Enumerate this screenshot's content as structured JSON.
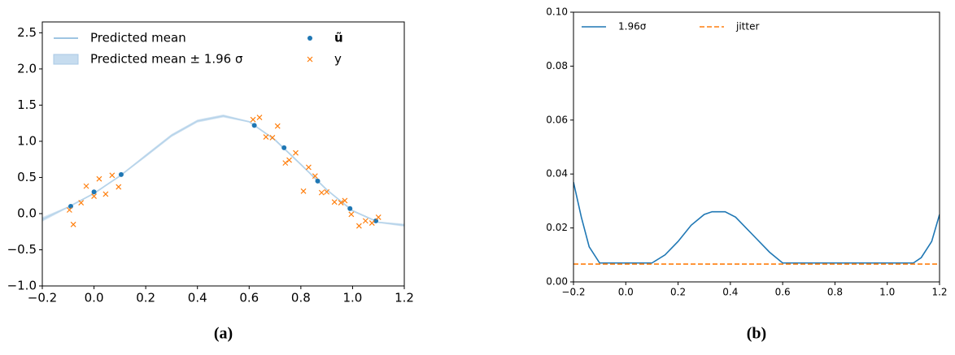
{
  "chart_data": [
    {
      "type": "line",
      "caption": "(a)",
      "xlim": [
        -0.2,
        1.2
      ],
      "ylim": [
        -1.0,
        2.65
      ],
      "xticks": [
        {
          "value": -0.2,
          "label": "−0.2"
        },
        {
          "value": 0,
          "label": "0.0"
        },
        {
          "value": 0.2,
          "label": "0.2"
        },
        {
          "value": 0.4,
          "label": "0.4"
        },
        {
          "value": 0.6,
          "label": "0.6"
        },
        {
          "value": 0.8,
          "label": "0.8"
        },
        {
          "value": 1.0,
          "label": "1.0"
        },
        {
          "value": 1.2,
          "label": "1.2"
        }
      ],
      "yticks": [
        {
          "value": -1.0,
          "label": "−1.0"
        },
        {
          "value": -0.5,
          "label": "−0.5"
        },
        {
          "value": 0,
          "label": "0.0"
        },
        {
          "value": 0.5,
          "label": "0.5"
        },
        {
          "value": 1.0,
          "label": "1.0"
        },
        {
          "value": 1.5,
          "label": "1.5"
        },
        {
          "value": 2.0,
          "label": "2.0"
        },
        {
          "value": 2.5,
          "label": "2.5"
        }
      ],
      "legend": "upper left",
      "series": [
        {
          "name": "Predicted mean",
          "kind": "line",
          "color": "#7fb2d8",
          "x": [
            -0.2,
            -0.1,
            0,
            0.1,
            0.2,
            0.3,
            0.4,
            0.5,
            0.6,
            0.7,
            0.8,
            0.9,
            1.0,
            1.1,
            1.2
          ],
          "values": [
            -0.08,
            0.09,
            0.28,
            0.52,
            0.8,
            1.08,
            1.28,
            1.35,
            1.27,
            1.02,
            0.68,
            0.33,
            0.04,
            -0.12,
            -0.16
          ]
        },
        {
          "name": "Predicted mean ± 1.96 σ",
          "kind": "band",
          "color": "#c6dcef",
          "x": [
            -0.2,
            -0.1,
            0,
            0.1,
            0.2,
            0.3,
            0.4,
            0.5,
            0.6,
            0.7,
            0.8,
            0.9,
            1.0,
            1.1,
            1.2
          ],
          "lower": [
            -0.11,
            0.08,
            0.27,
            0.51,
            0.78,
            1.06,
            1.26,
            1.33,
            1.26,
            1.01,
            0.67,
            0.32,
            0.03,
            -0.13,
            -0.18
          ],
          "upper": [
            -0.05,
            0.1,
            0.29,
            0.53,
            0.82,
            1.1,
            1.3,
            1.37,
            1.28,
            1.03,
            0.69,
            0.34,
            0.05,
            -0.11,
            -0.14
          ]
        },
        {
          "name": "ũ",
          "kind": "dot",
          "color": "#1f77b4",
          "x": [
            -0.09,
            0,
            0.105,
            0.62,
            0.735,
            0.865,
            0.99,
            1.09
          ],
          "values": [
            0.1,
            0.3,
            0.54,
            1.22,
            0.91,
            0.45,
            0.07,
            -0.1
          ]
        },
        {
          "name": "y",
          "kind": "cross",
          "color": "#ff7f0e",
          "x": [
            -0.095,
            -0.08,
            -0.05,
            -0.03,
            0,
            0.02,
            0.045,
            0.07,
            0.095,
            0.615,
            0.64,
            0.665,
            0.69,
            0.71,
            0.74,
            0.755,
            0.78,
            0.81,
            0.83,
            0.855,
            0.88,
            0.9,
            0.93,
            0.955,
            0.97,
            0.995,
            1.025,
            1.05,
            1.075,
            1.1
          ],
          "values": [
            0.05,
            -0.15,
            0.15,
            0.38,
            0.24,
            0.48,
            0.27,
            0.53,
            0.37,
            1.3,
            1.33,
            1.06,
            1.05,
            1.21,
            0.7,
            0.74,
            0.84,
            0.31,
            0.64,
            0.52,
            0.29,
            0.3,
            0.16,
            0.15,
            0.18,
            -0.01,
            -0.17,
            -0.1,
            -0.13,
            -0.05
          ]
        }
      ]
    },
    {
      "type": "line",
      "caption": "(b)",
      "xlim": [
        -0.2,
        1.2
      ],
      "ylim": [
        0,
        0.1
      ],
      "xticks": [
        {
          "value": -0.2,
          "label": "−0.2"
        },
        {
          "value": 0,
          "label": "0.0"
        },
        {
          "value": 0.2,
          "label": "0.2"
        },
        {
          "value": 0.4,
          "label": "0.4"
        },
        {
          "value": 0.6,
          "label": "0.6"
        },
        {
          "value": 0.8,
          "label": "0.8"
        },
        {
          "value": 1.0,
          "label": "1.0"
        },
        {
          "value": 1.2,
          "label": "1.2"
        }
      ],
      "yticks": [
        {
          "value": 0,
          "label": "0.00"
        },
        {
          "value": 0.02,
          "label": "0.02"
        },
        {
          "value": 0.04,
          "label": "0.04"
        },
        {
          "value": 0.06,
          "label": "0.06"
        },
        {
          "value": 0.08,
          "label": "0.08"
        },
        {
          "value": 0.1,
          "label": "0.10"
        }
      ],
      "legend": "upper left",
      "series": [
        {
          "name": "1.96σ",
          "kind": "line",
          "color": "#1f77b4",
          "x": [
            -0.2,
            -0.17,
            -0.14,
            -0.1,
            0.1,
            0.15,
            0.2,
            0.25,
            0.3,
            0.33,
            0.38,
            0.42,
            0.5,
            0.55,
            0.6,
            1.1,
            1.13,
            1.17,
            1.2
          ],
          "values": [
            0.037,
            0.024,
            0.013,
            0.007,
            0.007,
            0.01,
            0.015,
            0.021,
            0.025,
            0.026,
            0.026,
            0.024,
            0.016,
            0.011,
            0.007,
            0.007,
            0.009,
            0.015,
            0.025
          ]
        },
        {
          "name": "jitter",
          "kind": "dashed",
          "color": "#ff7f0e",
          "x": [
            -0.2,
            1.2
          ],
          "values": [
            0.0066,
            0.0066
          ]
        }
      ]
    }
  ]
}
